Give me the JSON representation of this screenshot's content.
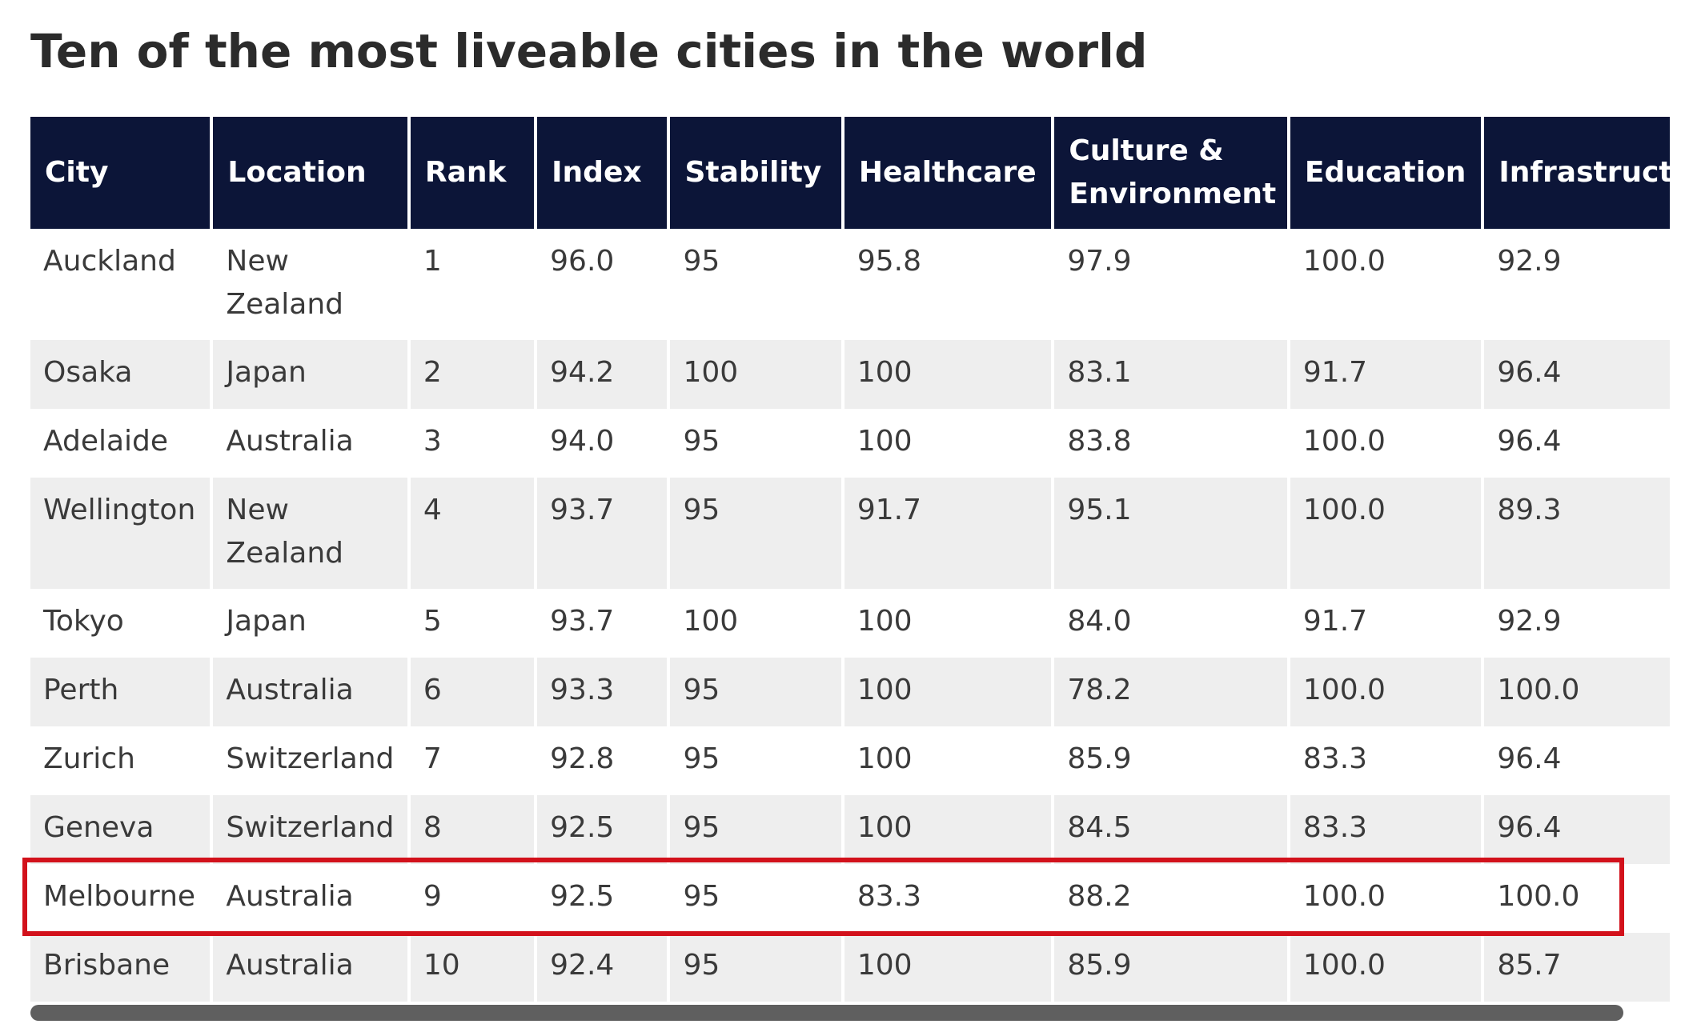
{
  "title": "Ten of the most liveable cities in the world",
  "colors": {
    "header_bg": "#0c1538",
    "header_text": "#ffffff",
    "row_alt": "#eeeeee",
    "highlight": "#d2111b",
    "scrollbar": "#5f5f5f"
  },
  "table": {
    "headers": [
      "City",
      "Location",
      "Rank",
      "Index",
      "Stability",
      "Healthcare",
      "Culture & Environment",
      "Education",
      "Infrastructure"
    ],
    "rows": [
      [
        "Auckland",
        "New Zealand",
        "1",
        "96.0",
        "95",
        "95.8",
        "97.9",
        "100.0",
        "92.9"
      ],
      [
        "Osaka",
        "Japan",
        "2",
        "94.2",
        "100",
        "100",
        "83.1",
        "91.7",
        "96.4"
      ],
      [
        "Adelaide",
        "Australia",
        "3",
        "94.0",
        "95",
        "100",
        "83.8",
        "100.0",
        "96.4"
      ],
      [
        "Wellington",
        "New Zealand",
        "4",
        "93.7",
        "95",
        "91.7",
        "95.1",
        "100.0",
        "89.3"
      ],
      [
        "Tokyo",
        "Japan",
        "5",
        "93.7",
        "100",
        "100",
        "84.0",
        "91.7",
        "92.9"
      ],
      [
        "Perth",
        "Australia",
        "6",
        "93.3",
        "95",
        "100",
        "78.2",
        "100.0",
        "100.0"
      ],
      [
        "Zurich",
        "Switzerland",
        "7",
        "92.8",
        "95",
        "100",
        "85.9",
        "83.3",
        "96.4"
      ],
      [
        "Geneva",
        "Switzerland",
        "8",
        "92.5",
        "95",
        "100",
        "84.5",
        "83.3",
        "96.4"
      ],
      [
        "Melbourne",
        "Australia",
        "9",
        "92.5",
        "95",
        "83.3",
        "88.2",
        "100.0",
        "100.0"
      ],
      [
        "Brisbane",
        "Australia",
        "10",
        "92.4",
        "95",
        "100",
        "85.9",
        "100.0",
        "85.7"
      ]
    ]
  }
}
